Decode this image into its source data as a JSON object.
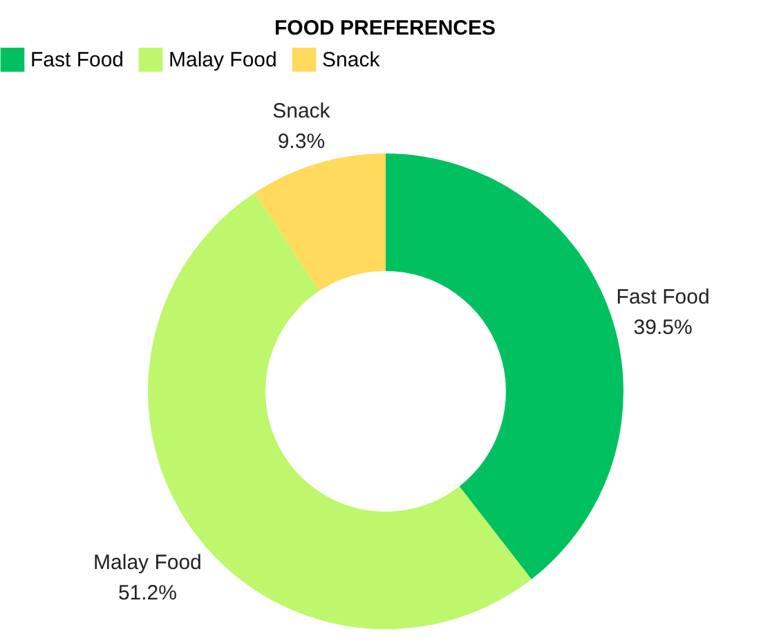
{
  "chart_data": {
    "type": "donut",
    "title": "FOOD PREFERENCES",
    "categories": [
      "Fast Food",
      "Malay Food",
      "Snack"
    ],
    "values": [
      39.5,
      51.2,
      9.3
    ],
    "value_labels": [
      "39.5%",
      "51.2%",
      "9.3%"
    ],
    "colors": [
      "#00c060",
      "#bff76c",
      "#ffda5c"
    ],
    "legend": "top"
  }
}
